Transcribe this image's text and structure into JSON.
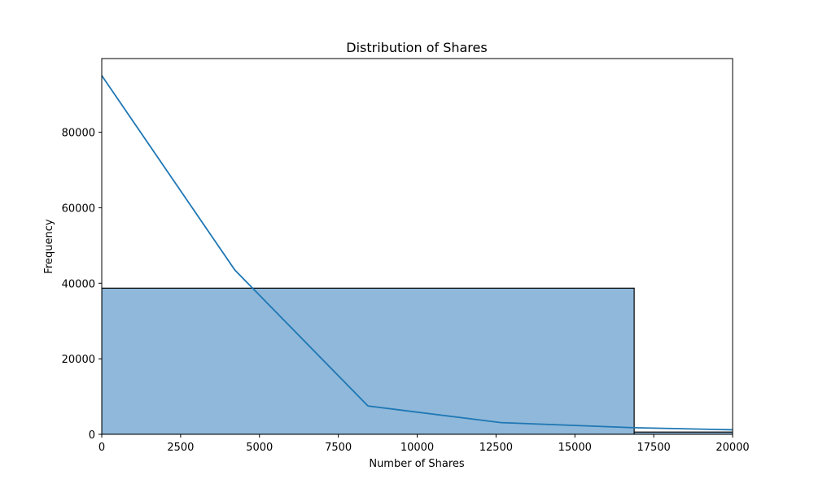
{
  "chart_data": {
    "type": "bar",
    "title": "Distribution of Shares",
    "xlabel": "Number of Shares",
    "ylabel": "Frequency",
    "xlim": [
      0,
      20000
    ],
    "ylim": [
      0,
      99500
    ],
    "xticks": [
      0,
      2500,
      5000,
      7500,
      10000,
      12500,
      15000,
      17500,
      20000
    ],
    "yticks": [
      0,
      20000,
      40000,
      60000,
      80000
    ],
    "grid": false,
    "bins": [
      {
        "x0": 0,
        "x1": 16880,
        "value": 38700
      },
      {
        "x0": 16880,
        "x1": 33760,
        "value": 600
      }
    ],
    "kde_line": {
      "x": [
        0,
        4220,
        8440,
        12660,
        16880,
        20000
      ],
      "y": [
        95000,
        43500,
        7500,
        3100,
        1750,
        1200
      ]
    },
    "colors": {
      "bar_fill": "#8fb8da",
      "bar_edge": "#000000",
      "line": "#1f77b4"
    }
  }
}
